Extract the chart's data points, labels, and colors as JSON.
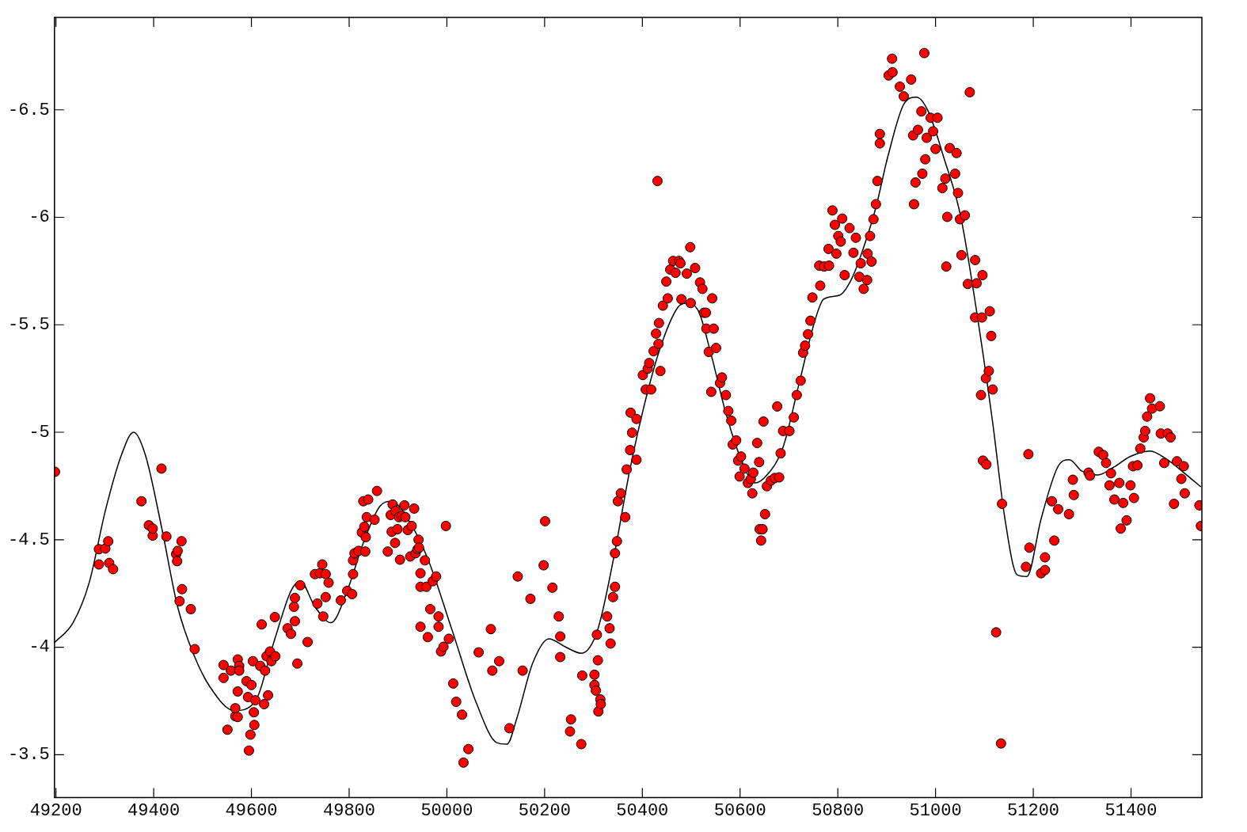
{
  "chart_data": {
    "type": "scatter",
    "xlim": [
      49197,
      51545
    ],
    "ylim": [
      -3.3,
      -6.93
    ],
    "xticks": [
      49200,
      49400,
      49600,
      49800,
      50000,
      50200,
      50400,
      50600,
      50800,
      51000,
      51200,
      51400
    ],
    "yticks": [
      -6.5,
      -6,
      -5.5,
      -5,
      -4.5,
      -4,
      -3.5
    ],
    "grid": false,
    "legend": false,
    "series": [
      {
        "type": "scatter",
        "color": "#ff0000",
        "marker": "circle",
        "x": [
          49198,
          49288,
          49288,
          49301,
          49307,
          49309,
          49317,
          49375,
          49390,
          49398,
          49398,
          49416,
          49426,
          49446,
          49448,
          49449,
          49457,
          49453,
          49458,
          49476,
          49484,
          49543,
          49543,
          49551,
          49558,
          49567,
          49567,
          49572,
          49572,
          49572,
          49575,
          49575,
          49590,
          49593,
          49595,
          49598,
          49600,
          49603,
          49605,
          49606,
          49608,
          49621,
          49618,
          49626,
          49628,
          49631,
          49634,
          49638,
          49641,
          49648,
          49649,
          49674,
          49681,
          49687,
          49689,
          49689,
          49694,
          49700,
          49715,
          49730,
          49735,
          49740,
          49745,
          49747,
          49752,
          49752,
          49758,
          49783,
          49796,
          49806,
          49808,
          49808,
          49811,
          49819,
          49826,
          49829,
          49831,
          49833,
          49836,
          49839,
          49834,
          49852,
          49857,
          49879,
          49885,
          49887,
          49889,
          49894,
          49895,
          49899,
          49902,
          49904,
          49908,
          49913,
          49915,
          49920,
          49925,
          49928,
          49933,
          49936,
          49940,
          49942,
          49943,
          49946,
          49946,
          49946,
          49955,
          49958,
          49961,
          49966,
          49971,
          49978,
          49983,
          49983,
          49988,
          49993,
          49998,
          50004,
          50013,
          50019,
          50031,
          50034,
          50044,
          50065,
          50090,
          50093,
          50107,
          50128,
          50145,
          50155,
          50171,
          50198,
          50201,
          50216,
          50229,
          50232,
          50232,
          50252,
          50254,
          50275,
          50277,
          50302,
          50302,
          50305,
          50307,
          50309,
          50310,
          50314,
          50315,
          50328,
          50333,
          50335,
          50340,
          50344,
          50344,
          50348,
          50350,
          50356,
          50365,
          50368,
          50375,
          50376,
          50379,
          50388,
          50388,
          50401,
          50407,
          50411,
          50414,
          50418,
          50423,
          50428,
          50433,
          50434,
          50437,
          50442,
          50449,
          50452,
          50431,
          50457,
          50463,
          50468,
          50475,
          50478,
          50480,
          50491,
          50498,
          50499,
          50508,
          50518,
          50523,
          50526,
          50530,
          50531,
          50536,
          50541,
          50543,
          50546,
          50551,
          50559,
          50563,
          50571,
          50576,
          50582,
          50585,
          50592,
          50596,
          50599,
          50602,
          50609,
          50616,
          50622,
          50625,
          50627,
          50635,
          50639,
          50640,
          50643,
          50646,
          50648,
          50651,
          50655,
          50663,
          50671,
          50680,
          50676,
          50683,
          50688,
          50701,
          50710,
          50716,
          50724,
          50729,
          50733,
          50739,
          50744,
          50748,
          50764,
          50762,
          50772,
          50782,
          50781,
          50789,
          50794,
          50797,
          50801,
          50806,
          50809,
          50814,
          50824,
          50832,
          50837,
          50844,
          50847,
          50853,
          50860,
          50861,
          50866,
          50869,
          50873,
          50878,
          50881,
          50886,
          50886,
          50904,
          50911,
          50912,
          50927,
          50935,
          50950,
          50954,
          50956,
          50959,
          50964,
          50971,
          50973,
          50977,
          50979,
          50982,
          50990,
          50995,
          51000,
          51004,
          51014,
          51020,
          51024,
          51029,
          51022,
          51040,
          51043,
          51046,
          51050,
          51053,
          51060,
          51066,
          51070,
          51081,
          51084,
          51081,
          51095,
          51096,
          51093,
          51103,
          51109,
          51111,
          51117,
          51114,
          51097,
          51104,
          51124,
          51136,
          51134,
          51185,
          51192,
          51190,
          51216,
          51224,
          51224,
          51238,
          51243,
          51251,
          51273,
          51281,
          51283,
          51313,
          51316,
          51334,
          51343,
          51349,
          51356,
          51359,
          51366,
          51376,
          51379,
          51384,
          51391,
          51399,
          51404,
          51406,
          51413,
          51419,
          51426,
          51429,
          51433,
          51439,
          51443,
          51459,
          51461,
          51468,
          51475,
          51481,
          51488,
          51494,
          51503,
          51508,
          51510,
          51540,
          51543
        ],
        "values": [
          -4.816,
          -4.385,
          -4.456,
          -4.459,
          -4.493,
          -4.392,
          -4.363,
          -4.679,
          -4.567,
          -4.519,
          -4.552,
          -4.831,
          -4.515,
          -4.433,
          -4.4,
          -4.448,
          -4.493,
          -4.214,
          -4.27,
          -4.177,
          -3.991,
          -3.917,
          -3.857,
          -3.616,
          -3.891,
          -3.679,
          -3.716,
          -3.943,
          -3.794,
          -3.675,
          -3.913,
          -3.891,
          -3.842,
          -3.768,
          -3.519,
          -3.593,
          -3.824,
          -3.935,
          -3.697,
          -3.638,
          -3.753,
          -4.106,
          -3.913,
          -3.735,
          -3.891,
          -3.958,
          -3.776,
          -3.98,
          -3.935,
          -4.14,
          -3.958,
          -4.088,
          -4.062,
          -4.188,
          -4.121,
          -4.229,
          -3.924,
          -4.288,
          -4.024,
          -4.34,
          -4.203,
          -4.344,
          -4.385,
          -4.143,
          -4.233,
          -4.34,
          -4.3,
          -4.218,
          -4.262,
          -4.247,
          -4.404,
          -4.34,
          -4.437,
          -4.448,
          -4.534,
          -4.679,
          -4.56,
          -4.445,
          -4.605,
          -4.687,
          -4.512,
          -4.593,
          -4.727,
          -4.445,
          -4.615,
          -4.537,
          -4.664,
          -4.485,
          -4.634,
          -4.549,
          -4.605,
          -4.407,
          -4.612,
          -4.66,
          -4.605,
          -4.545,
          -4.422,
          -4.564,
          -4.645,
          -4.437,
          -4.456,
          -4.5,
          -4.463,
          -4.095,
          -4.281,
          -4.344,
          -4.404,
          -4.281,
          -4.047,
          -4.177,
          -4.307,
          -4.329,
          -4.095,
          -4.143,
          -3.98,
          -4.002,
          -4.564,
          -4.039,
          -3.831,
          -3.746,
          -3.686,
          -3.463,
          -3.526,
          -3.976,
          -4.084,
          -3.891,
          -3.935,
          -3.623,
          -4.329,
          -3.891,
          -4.225,
          -4.381,
          -4.586,
          -4.277,
          -4.143,
          -4.05,
          -3.954,
          -3.608,
          -3.664,
          -3.549,
          -3.868,
          -3.872,
          -3.824,
          -3.798,
          -4.058,
          -3.939,
          -3.701,
          -3.757,
          -3.735,
          -4.143,
          -4.088,
          -4.017,
          -4.233,
          -4.281,
          -4.437,
          -4.493,
          -4.679,
          -4.716,
          -4.605,
          -4.827,
          -4.917,
          -5.091,
          -4.998,
          -4.872,
          -5.062,
          -5.266,
          -5.199,
          -5.296,
          -5.322,
          -5.199,
          -5.377,
          -5.459,
          -5.411,
          -5.508,
          -5.285,
          -5.589,
          -5.701,
          -5.623,
          -6.169,
          -5.757,
          -5.797,
          -5.742,
          -5.797,
          -5.786,
          -5.619,
          -5.738,
          -5.861,
          -5.601,
          -5.764,
          -5.697,
          -5.667,
          -5.556,
          -5.556,
          -5.482,
          -5.374,
          -5.188,
          -5.623,
          -5.482,
          -5.392,
          -5.229,
          -5.255,
          -5.173,
          -5.099,
          -5.054,
          -4.943,
          -4.962,
          -4.868,
          -4.794,
          -4.887,
          -4.831,
          -4.764,
          -4.783,
          -4.716,
          -4.812,
          -4.95,
          -4.861,
          -4.549,
          -4.496,
          -4.549,
          -5.05,
          -4.619,
          -4.749,
          -4.775,
          -4.787,
          -4.79,
          -5.12,
          -4.902,
          -5.006,
          -5.006,
          -5.069,
          -5.173,
          -5.24,
          -5.37,
          -5.403,
          -5.456,
          -5.519,
          -5.627,
          -5.682,
          -5.775,
          -5.771,
          -5.775,
          -5.853,
          -6.032,
          -5.965,
          -5.831,
          -5.913,
          -5.887,
          -5.994,
          -5.731,
          -5.95,
          -5.835,
          -5.905,
          -5.723,
          -5.786,
          -5.667,
          -5.708,
          -5.831,
          -5.913,
          -5.794,
          -5.991,
          -6.061,
          -6.169,
          -6.344,
          -6.388,
          -6.66,
          -6.738,
          -6.675,
          -6.608,
          -6.563,
          -6.641,
          -6.381,
          -6.061,
          -6.162,
          -6.407,
          -6.493,
          -6.203,
          -6.764,
          -6.27,
          -6.37,
          -6.463,
          -6.4,
          -6.318,
          -6.463,
          -6.136,
          -6.18,
          -6.002,
          -6.322,
          -5.771,
          -6.203,
          -6.299,
          -6.113,
          -5.991,
          -5.824,
          -6.009,
          -5.69,
          -6.582,
          -5.801,
          -5.693,
          -5.534,
          -5.534,
          -5.731,
          -5.173,
          -5.251,
          -5.285,
          -5.563,
          -5.199,
          -5.448,
          -4.868,
          -4.85,
          -4.069,
          -4.667,
          -3.552,
          -4.374,
          -4.463,
          -4.898,
          -4.344,
          -4.418,
          -4.359,
          -4.679,
          -4.496,
          -4.642,
          -4.619,
          -4.779,
          -4.708,
          -4.812,
          -4.798,
          -4.909,
          -4.894,
          -4.857,
          -4.753,
          -4.809,
          -4.687,
          -4.764,
          -4.552,
          -4.671,
          -4.59,
          -4.753,
          -4.842,
          -4.694,
          -4.846,
          -4.924,
          -4.976,
          -5.006,
          -5.073,
          -5.158,
          -5.11,
          -5.121,
          -4.994,
          -4.857,
          -4.994,
          -4.976,
          -4.667,
          -4.865,
          -4.783,
          -4.842,
          -4.716,
          -4.66,
          -4.564
        ]
      },
      {
        "type": "line",
        "color": "#000000",
        "marker": "none",
        "line_style": "solid",
        "x": [
          49197,
          49235,
          49268,
          49301,
          49334,
          49359,
          49383,
          49416,
          49449,
          49482,
          49515,
          49565,
          49606,
          49648,
          49681,
          49700,
          49730,
          49763,
          49796,
          49829,
          49862,
          49887,
          49920,
          49961,
          50011,
          50060,
          50102,
          50123,
          50143,
          50176,
          50209,
          50242,
          50275,
          50308,
          50341,
          50374,
          50407,
          50440,
          50473,
          50490,
          50515,
          50539,
          50572,
          50605,
          50630,
          50655,
          50688,
          50721,
          50754,
          50771,
          50804,
          50828,
          50853,
          50878,
          50903,
          50936,
          50961,
          50985,
          51018,
          51051,
          51084,
          51117,
          51142,
          51167,
          51187,
          51216,
          51250,
          51274,
          51299,
          51332,
          51365,
          51398,
          51439,
          51472,
          51514,
          51543
        ],
        "values": [
          -4.021,
          -4.114,
          -4.3,
          -4.634,
          -4.894,
          -5.0,
          -4.894,
          -4.56,
          -4.188,
          -3.965,
          -3.816,
          -3.705,
          -3.742,
          -4.039,
          -4.262,
          -4.307,
          -4.188,
          -4.114,
          -4.262,
          -4.485,
          -4.653,
          -4.679,
          -4.597,
          -4.411,
          -4.077,
          -3.742,
          -3.556,
          -3.549,
          -3.668,
          -3.928,
          -4.039,
          -4.002,
          -3.972,
          -4.077,
          -4.411,
          -4.82,
          -5.154,
          -5.415,
          -5.582,
          -5.6,
          -5.563,
          -5.377,
          -5.08,
          -4.857,
          -4.764,
          -4.801,
          -4.931,
          -5.229,
          -5.526,
          -5.619,
          -5.638,
          -5.712,
          -5.861,
          -6.047,
          -6.288,
          -6.53,
          -6.559,
          -6.493,
          -6.27,
          -6.009,
          -5.563,
          -5.043,
          -4.597,
          -4.337,
          -4.329,
          -4.597,
          -4.838,
          -4.872,
          -4.82,
          -4.801,
          -4.838,
          -4.887,
          -4.913,
          -4.876,
          -4.801,
          -4.746
        ]
      }
    ]
  }
}
